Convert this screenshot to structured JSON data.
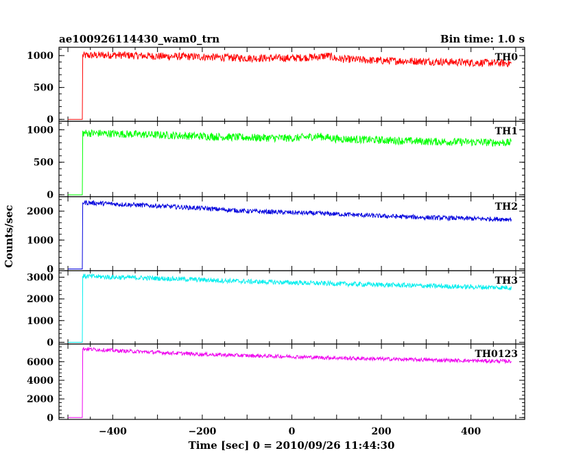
{
  "chart_data": {
    "type": "line",
    "title": "ae100926114430_wam0_trn",
    "bin_time_label": "Bin time: 1.0 s",
    "xlabel": "Time [sec] 0 = 2010/09/26 11:44:30",
    "ylabel": "Counts/sec",
    "xlim": [
      -520,
      520
    ],
    "x_ticks": [
      -400,
      -200,
      0,
      200,
      400
    ],
    "x_tick_labels": [
      "−400",
      "−200",
      "0",
      "200",
      "400"
    ],
    "grid": false,
    "series": [
      {
        "name": "TH0",
        "color": "#ff0000",
        "ylim": [
          -30,
          1130
        ],
        "y_ticks": [
          0,
          500,
          1000
        ],
        "x": [
          -500,
          -468,
          -467,
          -400,
          -300,
          -200,
          -100,
          0,
          60,
          80,
          100,
          200,
          300,
          400,
          490
        ],
        "y": [
          0,
          0,
          1000,
          1010,
          990,
          980,
          960,
          960,
          980,
          1000,
          950,
          920,
          910,
          890,
          880
        ],
        "noise": 60
      },
      {
        "name": "TH1",
        "color": "#00ff00",
        "ylim": [
          -30,
          1130
        ],
        "y_ticks": [
          0,
          500,
          1000
        ],
        "x": [
          -500,
          -468,
          -467,
          -400,
          -300,
          -200,
          -100,
          0,
          60,
          100,
          200,
          300,
          400,
          490
        ],
        "y": [
          0,
          0,
          950,
          940,
          920,
          900,
          880,
          870,
          900,
          860,
          840,
          820,
          810,
          800
        ],
        "noise": 60
      },
      {
        "name": "TH2",
        "color": "#0000dd",
        "ylim": [
          -60,
          2500
        ],
        "y_ticks": [
          0,
          1000,
          2000
        ],
        "x": [
          -500,
          -468,
          -467,
          -400,
          -300,
          -200,
          -100,
          0,
          100,
          200,
          300,
          400,
          490
        ],
        "y": [
          0,
          0,
          2300,
          2250,
          2180,
          2100,
          2000,
          1950,
          1900,
          1830,
          1780,
          1740,
          1720
        ],
        "noise": 80
      },
      {
        "name": "TH3",
        "color": "#00eeee",
        "ylim": [
          -80,
          3300
        ],
        "y_ticks": [
          0,
          1000,
          2000,
          3000
        ],
        "x": [
          -500,
          -468,
          -467,
          -400,
          -300,
          -200,
          -100,
          0,
          100,
          200,
          300,
          400,
          490
        ],
        "y": [
          0,
          0,
          3050,
          3000,
          2950,
          2880,
          2800,
          2750,
          2700,
          2650,
          2600,
          2550,
          2520
        ],
        "noise": 110
      },
      {
        "name": "TH0123",
        "color": "#ee00ee",
        "ylim": [
          -200,
          7900
        ],
        "y_ticks": [
          0,
          2000,
          4000,
          6000
        ],
        "x": [
          -500,
          -468,
          -467,
          -400,
          -300,
          -200,
          -100,
          0,
          100,
          200,
          300,
          400,
          490
        ],
        "y": [
          0,
          0,
          7400,
          7200,
          7000,
          6800,
          6650,
          6550,
          6400,
          6300,
          6200,
          6100,
          6050
        ],
        "noise": 200
      }
    ]
  }
}
